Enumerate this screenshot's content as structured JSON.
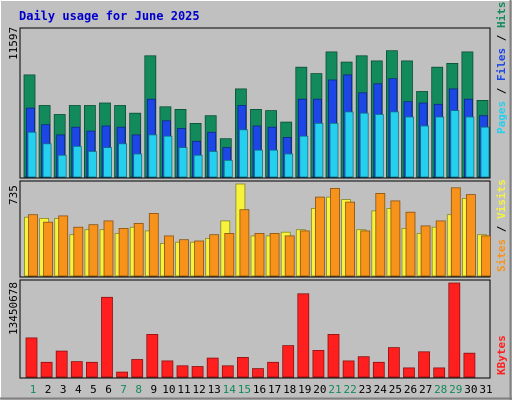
{
  "chart_data": {
    "type": "bar",
    "title": "Daily usage for June 2025",
    "categories": [
      "1",
      "2",
      "3",
      "4",
      "5",
      "6",
      "7",
      "8",
      "9",
      "10",
      "11",
      "12",
      "13",
      "14",
      "15",
      "16",
      "17",
      "18",
      "19",
      "20",
      "21",
      "22",
      "23",
      "24",
      "25",
      "26",
      "27",
      "28",
      "29",
      "30",
      "31"
    ],
    "weekend_days": [
      1,
      7,
      8,
      14,
      15,
      21,
      22,
      28,
      29
    ],
    "panels": [
      {
        "name": "hits-files-pages",
        "ymax_label": "11597",
        "ymax": 11597,
        "side_label": [
          "Pages",
          "Files",
          "Hits"
        ],
        "series": [
          {
            "name": "Hits",
            "color": "#138a5c",
            "values": [
              8000,
              5600,
              4900,
              5600,
              5600,
              5800,
              5600,
              5000,
              9500,
              5500,
              5300,
              4200,
              4800,
              3000,
              6900,
              5300,
              5200,
              4300,
              8600,
              8100,
              9800,
              9000,
              9500,
              9100,
              9900,
              9100,
              6700,
              8600,
              8900,
              9800,
              6000
            ]
          },
          {
            "name": "Files",
            "color": "#1c46e6",
            "values": [
              5400,
              4100,
              3300,
              3900,
              3600,
              4000,
              3900,
              3300,
              6100,
              4400,
              3800,
              2800,
              3500,
              2300,
              5600,
              4000,
              3900,
              3100,
              6100,
              6100,
              7600,
              8000,
              6600,
              7300,
              7700,
              5900,
              5800,
              5700,
              6900,
              6100,
              4800
            ]
          },
          {
            "name": "Pages",
            "color": "#25cfee",
            "values": [
              3500,
              2600,
              1700,
              2400,
              2000,
              2300,
              2600,
              1800,
              3300,
              3200,
              2300,
              1700,
              2000,
              1300,
              3700,
              2100,
              2100,
              1800,
              3200,
              4200,
              4200,
              5100,
              5000,
              4900,
              5100,
              4700,
              4000,
              4700,
              5200,
              4700,
              3900
            ]
          }
        ]
      },
      {
        "name": "visits-sites",
        "ymax_label": "735",
        "ymax": 735,
        "side_label": [
          "Sites",
          "Visits"
        ],
        "series": [
          {
            "name": "Visits",
            "color": "#f7f33c",
            "values": [
              470,
              460,
              460,
              330,
              370,
              370,
              340,
              390,
              360,
              260,
              270,
              270,
              300,
              440,
              735,
              320,
              320,
              350,
              370,
              540,
              630,
              610,
              370,
              520,
              540,
              380,
              340,
              390,
              490,
              620,
              330
            ]
          },
          {
            "name": "Sites",
            "color": "#f7931b",
            "values": [
              490,
              430,
              480,
              390,
              410,
              440,
              380,
              420,
              500,
              320,
              290,
              280,
              330,
              340,
              530,
              340,
              340,
              320,
              360,
              630,
              700,
              590,
              360,
              660,
              600,
              510,
              400,
              440,
              705,
              650,
              320
            ]
          }
        ]
      },
      {
        "name": "kbytes",
        "ymax_label": "13450678",
        "ymax": 13450678,
        "side_label": [
          "KBytes"
        ],
        "series": [
          {
            "name": "KBytes",
            "color": "#ff1f1f",
            "values": [
              5600000,
              2100000,
              3700000,
              2200000,
              2100000,
              11400000,
              700000,
              2500000,
              6100000,
              2300000,
              1600000,
              1500000,
              2700000,
              1600000,
              2800000,
              1200000,
              2100000,
              4500000,
              11900000,
              3800000,
              6100000,
              2300000,
              2900000,
              2100000,
              4200000,
              1300000,
              3600000,
              1300000,
              13450678,
              3400000,
              0
            ]
          }
        ]
      }
    ]
  }
}
